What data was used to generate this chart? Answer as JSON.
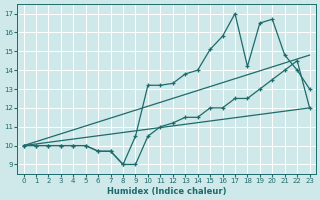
{
  "xlabel": "Humidex (Indice chaleur)",
  "xlim": [
    -0.5,
    23.5
  ],
  "ylim": [
    8.5,
    17.5
  ],
  "xticks": [
    0,
    1,
    2,
    3,
    4,
    5,
    6,
    7,
    8,
    9,
    10,
    11,
    12,
    13,
    14,
    15,
    16,
    17,
    18,
    19,
    20,
    21,
    22,
    23
  ],
  "yticks": [
    9,
    10,
    11,
    12,
    13,
    14,
    15,
    16,
    17
  ],
  "background_color": "#cfe8ea",
  "grid_color": "#ffffff",
  "line_color": "#1e6b6b",
  "series": [
    {
      "x": [
        0,
        1,
        2,
        3,
        4,
        5,
        6,
        7,
        8,
        9,
        10,
        11,
        12,
        13,
        14,
        15,
        16,
        17,
        18,
        19,
        20,
        21,
        22,
        23
      ],
      "y": [
        10,
        10,
        10,
        10,
        10,
        10,
        9.7,
        9.7,
        9,
        9,
        10.5,
        11,
        11.2,
        11.5,
        11.5,
        12,
        12,
        12.5,
        12.5,
        13,
        13.5,
        14,
        14.5,
        12
      ]
    },
    {
      "x": [
        0,
        1,
        2,
        3,
        4,
        5,
        6,
        7,
        8,
        9,
        10,
        11,
        12,
        13,
        14,
        15,
        16,
        17,
        18,
        19,
        20,
        21,
        22,
        23
      ],
      "y": [
        10,
        10,
        10,
        10,
        10,
        10,
        9.7,
        9.7,
        9,
        10.5,
        13.2,
        13.2,
        13.3,
        13.8,
        14.0,
        15.1,
        15.8,
        17.0,
        14.2,
        16.5,
        16.7,
        14.8,
        14,
        13
      ]
    },
    {
      "x": [
        0,
        23
      ],
      "y": [
        10,
        12.0
      ]
    },
    {
      "x": [
        0,
        23
      ],
      "y": [
        10,
        14.8
      ]
    }
  ]
}
